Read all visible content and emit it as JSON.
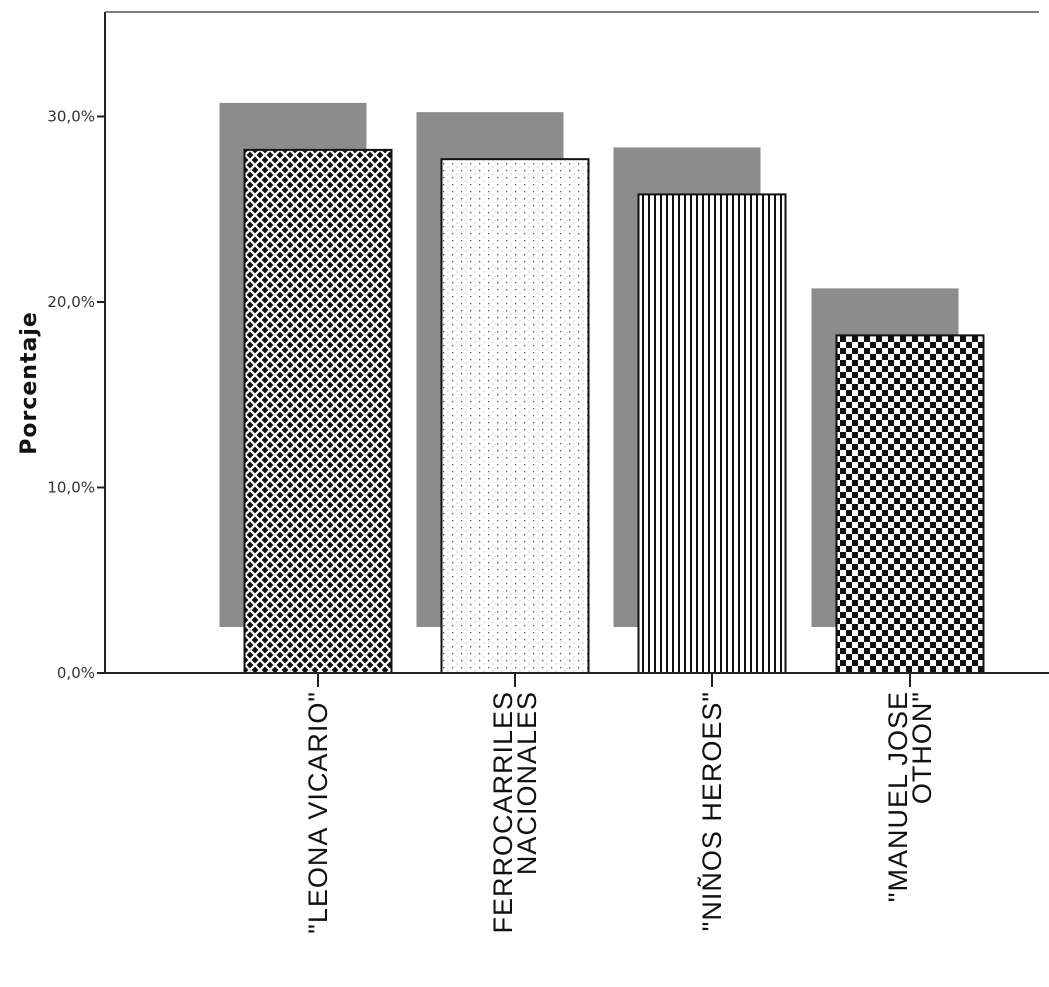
{
  "chart_data": {
    "type": "bar",
    "ylabel": "Porcentaje",
    "xlabel": "",
    "ylim": [
      0,
      35
    ],
    "yticks": [
      0,
      10,
      20,
      30
    ],
    "ytick_labels": [
      "0,0%",
      "10,0%",
      "20,0%",
      "30,0%"
    ],
    "categories": [
      [
        "\"LEONA VICARIO\""
      ],
      [
        "FERROCARRILES",
        "NACIONALES"
      ],
      [
        "\"NIÑOS HEROES\""
      ],
      [
        "\"MANUEL JOSE",
        "OTHON\""
      ]
    ],
    "values": [
      28.2,
      27.7,
      25.8,
      18.2
    ],
    "patterns": [
      "crosshatch",
      "dots",
      "vertical-lines",
      "checker"
    ],
    "shadow_color": "#8c8c8c",
    "grid": false,
    "legend": "none"
  }
}
